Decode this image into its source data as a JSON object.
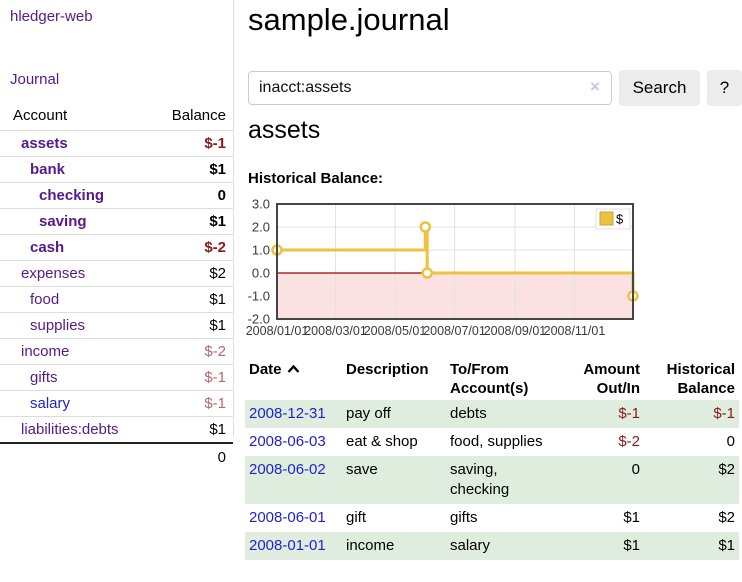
{
  "brand": {
    "label": "hledger-web"
  },
  "nav": {
    "journal": "Journal"
  },
  "sidebar": {
    "columns": {
      "account": "Account",
      "balance": "Balance"
    },
    "accounts": [
      {
        "name": "assets",
        "indent": 1,
        "bold": true,
        "balance": "$-1",
        "balance_style": "neg-strong"
      },
      {
        "name": "bank",
        "indent": 2,
        "bold": true,
        "balance": "$1",
        "balance_style": "pos"
      },
      {
        "name": "checking",
        "indent": 3,
        "bold": true,
        "balance": "0",
        "balance_style": "pos"
      },
      {
        "name": "saving",
        "indent": 3,
        "bold": true,
        "balance": "$1",
        "balance_style": "pos"
      },
      {
        "name": "cash",
        "indent": 2,
        "bold": true,
        "balance": "$-2",
        "balance_style": "neg-strong"
      },
      {
        "name": "expenses",
        "indent": 1,
        "bold": false,
        "balance": "$2",
        "balance_style": "pos"
      },
      {
        "name": "food",
        "indent": 2,
        "bold": false,
        "balance": "$1",
        "balance_style": "pos"
      },
      {
        "name": "supplies",
        "indent": 2,
        "bold": false,
        "balance": "$1",
        "balance_style": "pos"
      },
      {
        "name": "income",
        "indent": 1,
        "bold": false,
        "balance": "$-2",
        "balance_style": "neg-muted"
      },
      {
        "name": "gifts",
        "indent": 2,
        "bold": false,
        "balance": "$-1",
        "balance_style": "neg-muted"
      },
      {
        "name": "salary",
        "indent": 2,
        "bold": false,
        "balance": "$-1",
        "balance_style": "neg-muted",
        "link_color": "blue"
      },
      {
        "name": "liabilities:debts",
        "indent": 1,
        "bold": false,
        "balance": "$1",
        "balance_style": "pos"
      }
    ],
    "total": "0"
  },
  "header": {
    "title": "sample.journal"
  },
  "search": {
    "value": "inacct:assets",
    "clear_icon": "×",
    "search_button": "Search",
    "help_button": "?"
  },
  "section": {
    "title": "assets",
    "chart_label": "Historical Balance:"
  },
  "chart_data": {
    "type": "line",
    "style": "step-after",
    "title": "Historical Balance",
    "x_range": [
      "2008-01-01",
      "2008-12-31"
    ],
    "ylim": [
      -2,
      3
    ],
    "y_tick_labels": [
      "3.0",
      "2.0",
      "1.0",
      "0.0",
      "-1.0",
      "-2.0"
    ],
    "x_tick_labels": [
      "2008/01/01",
      "2008/03/01",
      "2008/05/01",
      "2008/07/01",
      "2008/09/01",
      "2008/11/01"
    ],
    "series": [
      {
        "name": "$",
        "color": "#edc240",
        "points": [
          {
            "date": "2008-01-01",
            "value": 1
          },
          {
            "date": "2008-06-01",
            "value": 2
          },
          {
            "date": "2008-06-03",
            "value": 0
          },
          {
            "date": "2008-12-31",
            "value": -1
          }
        ]
      }
    ],
    "legend": {
      "label": "$",
      "position": "top-right"
    },
    "grid": true,
    "negative_region_color": "#fbe1e1",
    "zero_line_color": "#9a0000"
  },
  "table": {
    "columns": {
      "date": "Date",
      "description": "Description",
      "tofrom": "To/From Account(s)",
      "amount": "Amount Out/In",
      "balance": "Historical Balance"
    },
    "sort": {
      "column": "Date",
      "direction": "ascending"
    },
    "rows": [
      {
        "date": "2008-12-31",
        "description": "pay off",
        "accounts": "debts",
        "amount": "$-1",
        "amount_negative": true,
        "balance": "$-1",
        "balance_negative": true
      },
      {
        "date": "2008-06-03",
        "description": "eat & shop",
        "accounts": "food, supplies",
        "amount": "$-2",
        "amount_negative": true,
        "balance": "0",
        "balance_negative": false
      },
      {
        "date": "2008-06-02",
        "description": "save",
        "accounts": "saving, checking",
        "amount": "0",
        "amount_negative": false,
        "balance": "$2",
        "balance_negative": false
      },
      {
        "date": "2008-06-01",
        "description": "gift",
        "accounts": "gifts",
        "amount": "$1",
        "amount_negative": false,
        "balance": "$2",
        "balance_negative": false
      },
      {
        "date": "2008-01-01",
        "description": "income",
        "accounts": "salary",
        "amount": "$1",
        "amount_negative": false,
        "balance": "$1",
        "balance_negative": false
      }
    ]
  },
  "colors": {
    "link_purple": "#551a8b",
    "link_blue": "#2222cc",
    "negative": "#8b1a1a",
    "negative_muted": "#b56a6a",
    "row_highlight": "#deedde",
    "series": "#edc240"
  }
}
